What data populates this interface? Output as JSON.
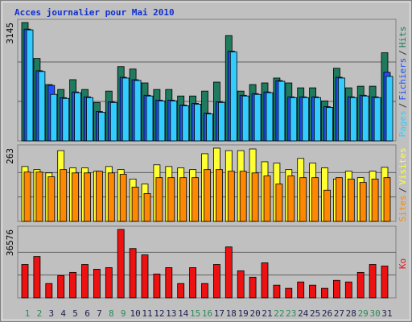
{
  "title": "Acces journalier pour Mai 2010",
  "chart_data": [
    {
      "type": "bar",
      "ylim": [
        0,
        3145
      ],
      "yticks": [
        3145
      ],
      "grid_divisions": 3,
      "legend_separator": "/",
      "series": [
        {
          "name": "Pages",
          "color": "#33ccff",
          "values": [
            2950,
            1844,
            1236,
            1128,
            1280,
            1150,
            759,
            1019,
            1670,
            1605,
            1193,
            1063,
            1063,
            933,
            976,
            716,
            1019,
            2364,
            1193,
            1236,
            1280,
            1583,
            1150,
            1150,
            1150,
            889,
            1670,
            1150,
            1193,
            1150,
            1714
          ]
        },
        {
          "name": "Fichiers",
          "color": "#2050ff",
          "values": [
            2970,
            1864,
            1475,
            1148,
            1300,
            1170,
            779,
            1039,
            1690,
            1625,
            1213,
            1083,
            1083,
            953,
            996,
            736,
            1039,
            2384,
            1213,
            1256,
            1300,
            1603,
            1170,
            1170,
            1170,
            909,
            1690,
            1170,
            1213,
            1170,
            1822
          ]
        },
        {
          "name": "Hits",
          "color": "#1f7a5e",
          "values": [
            3145,
            2190,
            1497,
            1366,
            1627,
            1366,
            1019,
            1323,
            1974,
            1909,
            1540,
            1366,
            1366,
            1193,
            1193,
            1323,
            1562,
            2798,
            1323,
            1497,
            1540,
            1670,
            1540,
            1410,
            1410,
            1063,
            1930,
            1410,
            1453,
            1453,
            2343
          ]
        }
      ]
    },
    {
      "type": "bar",
      "ylim": [
        0,
        263
      ],
      "yticks": [
        263
      ],
      "grid_divisions": 3,
      "legend_separator": "/",
      "series": [
        {
          "name": "Sites",
          "color": "#ff8800",
          "values": [
            177,
            177,
            160,
            186,
            174,
            174,
            180,
            174,
            169,
            123,
            100,
            157,
            157,
            157,
            157,
            186,
            186,
            180,
            180,
            174,
            163,
            134,
            163,
            157,
            157,
            112,
            157,
            152,
            140,
            152,
            157
          ]
        },
        {
          "name": "Visites",
          "color": "#ffff33",
          "values": [
            197,
            186,
            174,
            254,
            192,
            192,
            180,
            197,
            186,
            152,
            134,
            203,
            197,
            192,
            186,
            243,
            263,
            254,
            254,
            260,
            214,
            209,
            186,
            226,
            209,
            192,
            152,
            180,
            157,
            180,
            194
          ]
        }
      ]
    },
    {
      "type": "bar",
      "ylim": [
        0,
        36576
      ],
      "yticks": [
        36576
      ],
      "grid_divisions": 3,
      "categories": [
        "1",
        "2",
        "3",
        "4",
        "5",
        "6",
        "7",
        "8",
        "9",
        "10",
        "11",
        "12",
        "13",
        "14",
        "15",
        "16",
        "17",
        "18",
        "19",
        "20",
        "21",
        "22",
        "23",
        "24",
        "25",
        "26",
        "27",
        "28",
        "29",
        "30",
        "31"
      ],
      "category_colors": [
        "#2a8a5a",
        "#2a8a5a",
        "#202050",
        "#202050",
        "#202050",
        "#202050",
        "#202050",
        "#2a8a5a",
        "#2a8a5a",
        "#202050",
        "#202050",
        "#202050",
        "#202050",
        "#202050",
        "#2a8a5a",
        "#2a8a5a",
        "#202050",
        "#202050",
        "#202050",
        "#202050",
        "#202050",
        "#2a8a5a",
        "#2a8a5a",
        "#202050",
        "#202050",
        "#202050",
        "#202050",
        "#202050",
        "#2a8a5a",
        "#2a8a5a",
        "#202050"
      ],
      "series": [
        {
          "name": "Ko",
          "color": "#ee1111",
          "values": [
            17863,
            22116,
            7655,
            11908,
            13610,
            17863,
            15311,
            16161,
            36576,
            26369,
            22966,
            12759,
            16161,
            7655,
            16161,
            7655,
            17863,
            27219,
            14460,
            11058,
            18713,
            6805,
            5104,
            8506,
            6805,
            5104,
            9357,
            8506,
            13610,
            17863,
            17012
          ]
        }
      ]
    }
  ]
}
